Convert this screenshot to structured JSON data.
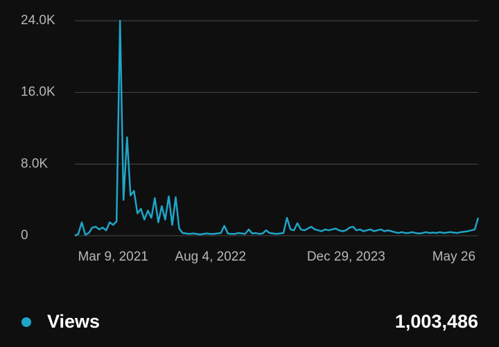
{
  "chart_data": {
    "type": "line",
    "categories": [
      null,
      null,
      null,
      null,
      null,
      null,
      null,
      null,
      null,
      null,
      null,
      "Mar 9, 2021",
      null,
      null,
      null,
      null,
      null,
      null,
      null,
      null,
      null,
      null,
      null,
      null,
      null,
      null,
      null,
      null,
      null,
      null,
      null,
      null,
      null,
      null,
      null,
      null,
      null,
      null,
      null,
      "Aug 4, 2022",
      null,
      null,
      null,
      null,
      null,
      null,
      null,
      null,
      null,
      null,
      null,
      null,
      null,
      null,
      null,
      null,
      null,
      null,
      null,
      null,
      null,
      null,
      null,
      null,
      null,
      null,
      null,
      null,
      null,
      null,
      null,
      null,
      null,
      null,
      null,
      null,
      null,
      null,
      "Dec 29, 2023",
      null,
      null,
      null,
      null,
      null,
      null,
      null,
      null,
      null,
      null,
      null,
      null,
      null,
      null,
      null,
      null,
      null,
      null,
      null,
      null,
      null,
      null,
      null,
      null,
      null,
      null,
      null,
      null,
      null,
      null,
      "May 26",
      null,
      null,
      null,
      null,
      null,
      null,
      null
    ],
    "series": [
      {
        "name": "Views",
        "color": "#1ea5c9",
        "values": [
          0,
          200,
          1500,
          100,
          300,
          900,
          1000,
          700,
          900,
          600,
          1500,
          1200,
          1600,
          24000,
          4000,
          11000,
          4500,
          5000,
          2500,
          3000,
          1800,
          2800,
          2000,
          4200,
          1500,
          3300,
          1800,
          4400,
          1200,
          4300,
          800,
          300,
          250,
          200,
          250,
          200,
          150,
          200,
          250,
          200,
          200,
          250,
          300,
          1100,
          250,
          200,
          200,
          300,
          250,
          200,
          700,
          250,
          300,
          200,
          250,
          600,
          300,
          250,
          200,
          250,
          300,
          2000,
          700,
          600,
          1400,
          700,
          600,
          800,
          1000,
          700,
          600,
          500,
          700,
          600,
          700,
          800,
          600,
          500,
          600,
          900,
          1000,
          600,
          700,
          500,
          600,
          700,
          500,
          600,
          700,
          500,
          600,
          500,
          400,
          300,
          400,
          300,
          300,
          400,
          300,
          250,
          300,
          400,
          300,
          350,
          300,
          400,
          300,
          350,
          400,
          350,
          300,
          400,
          450,
          500,
          600,
          700,
          2000
        ]
      }
    ],
    "total": "1,003,486",
    "ylim": [
      0,
      24000
    ],
    "yticks": [
      0,
      {
        "value": 8000,
        "label": "8.0K"
      },
      {
        "value": 16000,
        "label": "16.0K"
      },
      {
        "value": 24000,
        "label": "24.0K"
      }
    ],
    "grid": true
  }
}
